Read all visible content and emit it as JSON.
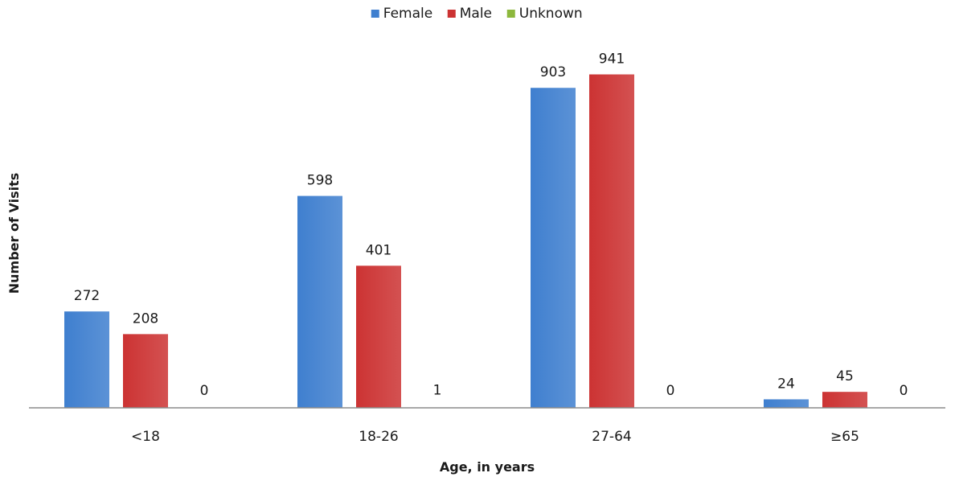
{
  "chart_data": {
    "type": "bar",
    "categories": [
      "<18",
      "18-26",
      "27-64",
      "≥65"
    ],
    "series": [
      {
        "name": "Female",
        "color": "#3f7fcf",
        "values": [
          272,
          598,
          903,
          24
        ]
      },
      {
        "name": "Male",
        "color": "#cc3333",
        "values": [
          208,
          401,
          941,
          45
        ]
      },
      {
        "name": "Unknown",
        "color": "#8db83d",
        "values": [
          0,
          1,
          0,
          0
        ]
      }
    ],
    "xlabel": "Age, in years",
    "ylabel": "Number of Visits",
    "ylim": [
      0,
      1000
    ],
    "grid": false,
    "legend": "top-center",
    "show_y_ticks": false
  }
}
